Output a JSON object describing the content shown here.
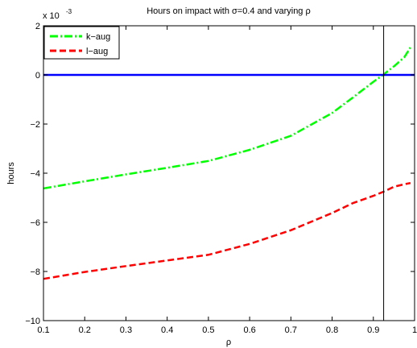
{
  "chart_data": {
    "type": "line",
    "title": "Hours on impact with σ=0.4 and varying ρ",
    "xlabel": "ρ",
    "ylabel": "hours",
    "exponent_label": "x 10",
    "exponent_power": "-3",
    "xlim": [
      0.1,
      1.0
    ],
    "ylim": [
      -10,
      2
    ],
    "xticks": [
      "0.1",
      "0.2",
      "0.3",
      "0.4",
      "0.5",
      "0.6",
      "0.7",
      "0.8",
      "0.9",
      "1"
    ],
    "yticks": [
      "-10",
      "-8",
      "-6",
      "-4",
      "-2",
      "0",
      "2"
    ],
    "grid": false,
    "legend_position": "top-left",
    "series": [
      {
        "name": "k−aug",
        "color": "#00ff00",
        "style": "dashdot",
        "x": [
          0.1,
          0.2,
          0.3,
          0.4,
          0.5,
          0.6,
          0.7,
          0.8,
          0.85,
          0.9,
          0.925,
          0.95,
          0.975,
          0.99
        ],
        "y": [
          -4.62,
          -4.33,
          -4.05,
          -3.78,
          -3.5,
          -3.05,
          -2.48,
          -1.55,
          -0.92,
          -0.28,
          0.02,
          0.35,
          0.72,
          1.12
        ]
      },
      {
        "name": "l−aug",
        "color": "#ff0000",
        "style": "dashed",
        "x": [
          0.1,
          0.2,
          0.3,
          0.4,
          0.5,
          0.6,
          0.7,
          0.8,
          0.85,
          0.9,
          0.925,
          0.95,
          0.975,
          0.99
        ],
        "y": [
          -8.3,
          -8.02,
          -7.78,
          -7.55,
          -7.32,
          -6.88,
          -6.32,
          -5.62,
          -5.22,
          -4.92,
          -4.75,
          -4.55,
          -4.45,
          -4.4
        ]
      },
      {
        "name": "",
        "color": "#0000ff",
        "style": "solid",
        "x": [
          0.1,
          1.0
        ],
        "y": [
          0,
          0
        ]
      }
    ],
    "vertical_line_x": 0.925,
    "vertical_line_color": "#000000"
  }
}
